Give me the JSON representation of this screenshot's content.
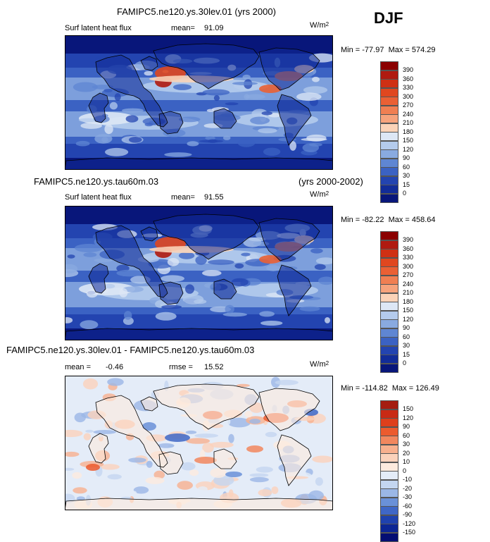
{
  "season": "DJF",
  "panels": [
    {
      "title": "FAMIPC5.ne120.ys.30lev.01 (yrs 2000)",
      "title_right": "",
      "left_label": "Surf latent heat flux",
      "stat_label": "mean=",
      "stat_value": "91.09",
      "stat2_label": "",
      "stat2_value": "",
      "units": "W/m",
      "units_sup": "2",
      "range_text": "Min = -77.97  Max = 574.29",
      "scheme": "mean"
    },
    {
      "title": "FAMIPC5.ne120.ys.tau60m.03",
      "title_right": "(yrs 2000-2002)",
      "left_label": "Surf latent heat flux",
      "stat_label": "mean=",
      "stat_value": "91.55",
      "stat2_label": "",
      "stat2_value": "",
      "units": "W/m",
      "units_sup": "2",
      "range_text": "Min = -82.22  Max = 458.64",
      "scheme": "mean"
    },
    {
      "title": "FAMIPC5.ne120.ys.30lev.01 - FAMIPC5.ne120.ys.tau60m.03",
      "title_right": "",
      "left_label": "",
      "stat_label": "mean =",
      "stat_value": "-0.46",
      "stat2_label": "rmse =",
      "stat2_value": "15.52",
      "units": "W/m",
      "units_sup": "2",
      "range_text": "Min = -114.82  Max = 126.49",
      "scheme": "diff"
    }
  ],
  "chart_data": [
    {
      "type": "heatmap",
      "title": "FAMIPC5.ne120.ys.30lev.01 (yrs 2000)",
      "variable": "Surf latent heat flux",
      "units": "W/m2",
      "mean": 91.09,
      "min": -77.97,
      "max": 574.29,
      "colorbar_levels": [
        "390",
        "360",
        "330",
        "300",
        "270",
        "240",
        "210",
        "180",
        "150",
        "120",
        "90",
        "60",
        "30",
        "15",
        "0"
      ],
      "colorbar_colors": [
        "#8b0000",
        "#b01a10",
        "#cf3014",
        "#e0471f",
        "#ea6034",
        "#f07f52",
        "#f6a37c",
        "#fad3b8",
        "#dde7f5",
        "#b4cbec",
        "#89aae0",
        "#5f86d3",
        "#3b62c3",
        "#2344b0",
        "#122c98",
        "#08167a"
      ]
    },
    {
      "type": "heatmap",
      "title": "FAMIPC5.ne120.ys.tau60m.03 (yrs 2000-2002)",
      "variable": "Surf latent heat flux",
      "units": "W/m2",
      "mean": 91.55,
      "min": -82.22,
      "max": 458.64,
      "colorbar_levels": [
        "390",
        "360",
        "330",
        "300",
        "270",
        "240",
        "210",
        "180",
        "150",
        "120",
        "90",
        "60",
        "30",
        "15",
        "0"
      ],
      "colorbar_colors": [
        "#8b0000",
        "#b01a10",
        "#cf3014",
        "#e0471f",
        "#ea6034",
        "#f07f52",
        "#f6a37c",
        "#fad3b8",
        "#dde7f5",
        "#b4cbec",
        "#89aae0",
        "#5f86d3",
        "#3b62c3",
        "#2344b0",
        "#122c98",
        "#08167a"
      ]
    },
    {
      "type": "heatmap",
      "title": "FAMIPC5.ne120.ys.30lev.01 - FAMIPC5.ne120.ys.tau60m.03",
      "units": "W/m2",
      "mean": -0.46,
      "rmse": 15.52,
      "min": -114.82,
      "max": 126.49,
      "colorbar_levels": [
        "150",
        "120",
        "90",
        "60",
        "30",
        "20",
        "10",
        "0",
        "-10",
        "-20",
        "-30",
        "-60",
        "-90",
        "-120",
        "-150"
      ],
      "colorbar_colors": [
        "#a51d10",
        "#c92a15",
        "#de3f1c",
        "#ec5b2e",
        "#f2875e",
        "#f8b08e",
        "#fbd2bb",
        "#fdebde",
        "#e4ecf8",
        "#c4d6f0",
        "#9bb7e6",
        "#6a91d8",
        "#3f67c6",
        "#1f42ae",
        "#0c2694",
        "#040e73"
      ]
    }
  ]
}
